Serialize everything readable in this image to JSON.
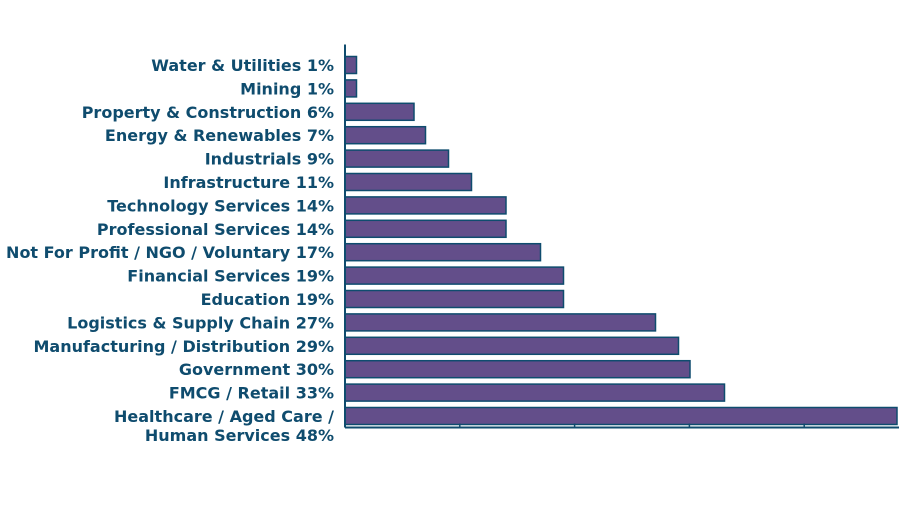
{
  "chart_data": {
    "type": "bar",
    "orientation": "horizontal",
    "title": "",
    "xlabel": "",
    "ylabel": "",
    "xlim": [
      0,
      48
    ],
    "grid": false,
    "legend": "none",
    "categories": [
      "Water & Utilities 1%",
      "Mining 1%",
      "Property & Construction 6%",
      "Energy & Renewables 7%",
      "Industrials 9%",
      "Infrastructure 11%",
      "Technology Services 14%",
      "Professional Services 14%",
      "Not For Profit / NGO / Voluntary 17%",
      "Financial Services 19%",
      "Education 19%",
      "Logistics & Supply Chain 27%",
      "Manufacturing / Distribution 29%",
      "Government 30%",
      "FMCG / Retail 33%",
      "Healthcare / Aged Care / Human Services 48%"
    ],
    "label_lines": [
      [
        "Water & Utilities 1%"
      ],
      [
        "Mining 1%"
      ],
      [
        "Property & Construction 6%"
      ],
      [
        "Energy & Renewables 7%"
      ],
      [
        "Industrials 9%"
      ],
      [
        "Infrastructure 11%"
      ],
      [
        "Technology Services 14%"
      ],
      [
        "Professional Services 14%"
      ],
      [
        "Not For Profit / NGO / Voluntary 17%"
      ],
      [
        "Financial Services 19%"
      ],
      [
        "Education 19%"
      ],
      [
        "Logistics & Supply Chain 27%"
      ],
      [
        "Manufacturing / Distribution 29%"
      ],
      [
        "Government 30%"
      ],
      [
        "FMCG / Retail 33%"
      ],
      [
        "Healthcare / Aged Care /",
        "Human Services 48%"
      ]
    ],
    "values": [
      1,
      1,
      6,
      7,
      9,
      11,
      14,
      14,
      17,
      19,
      19,
      27,
      29,
      30,
      33,
      48
    ],
    "colors": {
      "bar_fill": "#634e8a",
      "bar_stroke": "#0f4c6e",
      "label_text": "#0f4c6e",
      "axis": "#0f4c6e"
    }
  }
}
